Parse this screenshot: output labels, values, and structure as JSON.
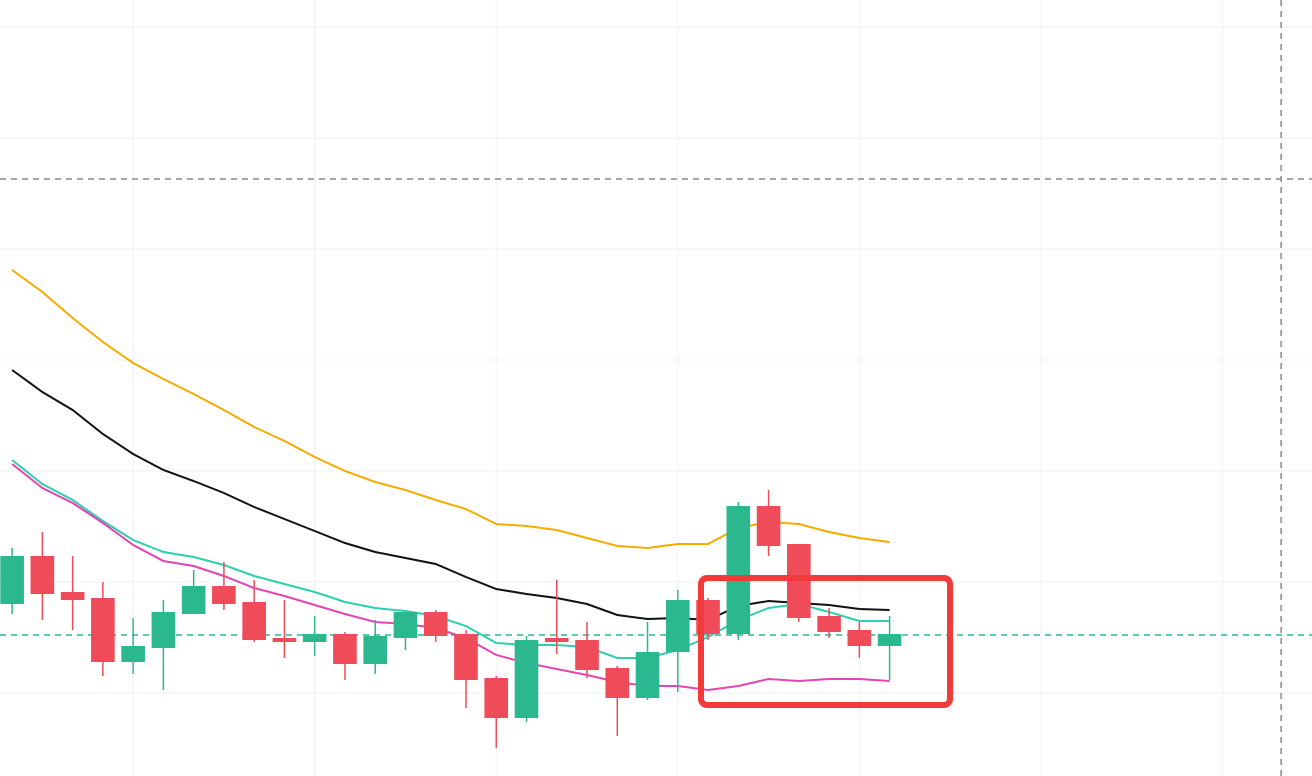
{
  "chart_data": {
    "type": "candlestick",
    "up_color": "#2bb88e",
    "down_color": "#ef4b59",
    "xlim": [
      -0.4,
      42.96
    ],
    "ylim": [
      0,
      776
    ],
    "xticks": [
      4,
      10,
      16,
      22,
      28,
      34,
      40
    ],
    "yticks": [
      83,
      194,
      305,
      416,
      527,
      638,
      749
    ],
    "grid": true,
    "candles": {
      "open": [
        172,
        220,
        184,
        178,
        114,
        128,
        162,
        190,
        174,
        138,
        134,
        142,
        112,
        138,
        164,
        142,
        98,
        58,
        138,
        136,
        108,
        78,
        124,
        176,
        142,
        270,
        232,
        160,
        146,
        130
      ],
      "high": [
        228,
        244,
        220,
        194,
        158,
        176,
        206,
        214,
        196,
        176,
        160,
        144,
        156,
        164,
        166,
        146,
        100,
        140,
        196,
        154,
        110,
        154,
        186,
        178,
        274,
        286,
        232,
        168,
        154,
        160
      ],
      "low": [
        162,
        156,
        146,
        100,
        102,
        86,
        162,
        166,
        134,
        118,
        120,
        96,
        102,
        126,
        134,
        68,
        28,
        54,
        122,
        98,
        40,
        76,
        84,
        136,
        136,
        220,
        154,
        138,
        118,
        96
      ],
      "close": [
        220,
        182,
        176,
        114,
        130,
        164,
        190,
        172,
        136,
        134,
        142,
        112,
        140,
        164,
        140,
        96,
        58,
        136,
        134,
        106,
        78,
        124,
        176,
        142,
        270,
        230,
        158,
        144,
        130,
        142
      ]
    },
    "series": [
      {
        "color": "#f5ab00",
        "values": [
          506,
          484,
          458,
          434,
          413,
          397,
          382,
          366,
          349,
          335,
          319,
          305,
          294,
          286,
          276,
          267,
          252,
          250,
          246,
          238,
          230,
          228,
          232,
          232,
          248,
          254,
          252,
          244,
          238,
          234
        ]
      },
      {
        "color": "#111111",
        "values": [
          406,
          384,
          366,
          342,
          322,
          306,
          295,
          283,
          269,
          257,
          245,
          233,
          224,
          218,
          212,
          199,
          187,
          182,
          178,
          172,
          161,
          157,
          158,
          156,
          170,
          175,
          173,
          171,
          167,
          166
        ]
      },
      {
        "color": "#2ecfb0",
        "values": [
          316,
          292,
          276,
          255,
          236,
          224,
          219,
          211,
          200,
          192,
          184,
          174,
          168,
          165,
          160,
          150,
          133,
          131,
          131,
          129,
          118,
          118,
          126,
          139,
          156,
          168,
          172,
          164,
          155,
          155
        ]
      },
      {
        "color": "#e444b4",
        "values": [
          312,
          288,
          273,
          253,
          231,
          215,
          210,
          200,
          188,
          180,
          171,
          162,
          154,
          152,
          148,
          138,
          121,
          113,
          107,
          101,
          94,
          90,
          90,
          86,
          90,
          97,
          95,
          97,
          97,
          95
        ]
      }
    ],
    "hlines": [
      {
        "value": 597,
        "color": "#888888"
      },
      {
        "value": 141,
        "color": "#2bb88e"
      }
    ],
    "vline": {
      "x": 41.94,
      "color": "#888888"
    }
  }
}
